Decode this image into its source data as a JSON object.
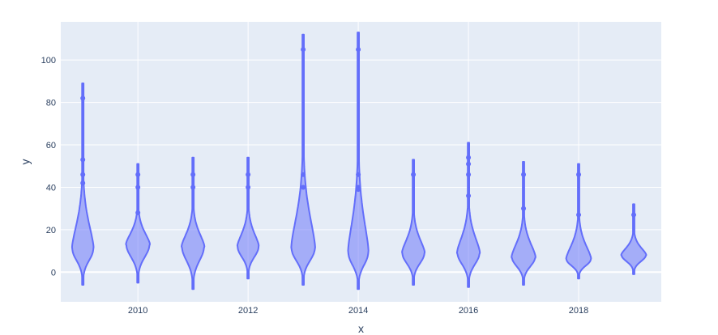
{
  "chart_data": {
    "type": "violin",
    "title": "",
    "xlabel": "x",
    "ylabel": "y",
    "xlim": [
      2008.6,
      2019.5
    ],
    "ylim": [
      -14,
      118
    ],
    "xticks": [
      2010,
      2012,
      2014,
      2016,
      2018
    ],
    "yticks": [
      0,
      20,
      40,
      60,
      80,
      100
    ],
    "grid": true,
    "legend": "none",
    "colors": {
      "plot_bg": "#e5ecf6",
      "grid": "#ffffff",
      "fill": "#636efa",
      "line": "#636efa"
    },
    "violins": [
      {
        "x": 2009,
        "min": -6,
        "max": 89,
        "mode": 11,
        "half_width": 0.19,
        "outliers": [
          42,
          46,
          53,
          82
        ]
      },
      {
        "x": 2010,
        "min": -5,
        "max": 51,
        "mode": 13,
        "half_width": 0.21,
        "outliers": [
          28,
          40,
          46
        ]
      },
      {
        "x": 2011,
        "min": -8,
        "max": 54,
        "mode": 12,
        "half_width": 0.2,
        "outliers": [
          40,
          46
        ]
      },
      {
        "x": 2012,
        "min": -3,
        "max": 54,
        "mode": 12,
        "half_width": 0.19,
        "outliers": [
          40,
          46
        ]
      },
      {
        "x": 2013,
        "min": -6,
        "max": 112,
        "mode": 11,
        "half_width": 0.21,
        "outliers": [
          40,
          46,
          105
        ]
      },
      {
        "x": 2014,
        "min": -8,
        "max": 113,
        "mode": 9,
        "half_width": 0.18,
        "outliers": [
          39,
          40,
          46,
          105
        ]
      },
      {
        "x": 2015,
        "min": -6,
        "max": 53,
        "mode": 9,
        "half_width": 0.2,
        "outliers": [
          46
        ]
      },
      {
        "x": 2016,
        "min": -7,
        "max": 61,
        "mode": 9,
        "half_width": 0.2,
        "outliers": [
          36,
          46,
          51,
          54
        ]
      },
      {
        "x": 2017,
        "min": -6,
        "max": 52,
        "mode": 7,
        "half_width": 0.21,
        "outliers": [
          30,
          46
        ]
      },
      {
        "x": 2018,
        "min": -3,
        "max": 51,
        "mode": 6,
        "half_width": 0.22,
        "outliers": [
          27,
          46
        ]
      },
      {
        "x": 2019,
        "min": -1,
        "max": 32,
        "mode": 8,
        "half_width": 0.22,
        "outliers": [
          27
        ]
      }
    ]
  }
}
